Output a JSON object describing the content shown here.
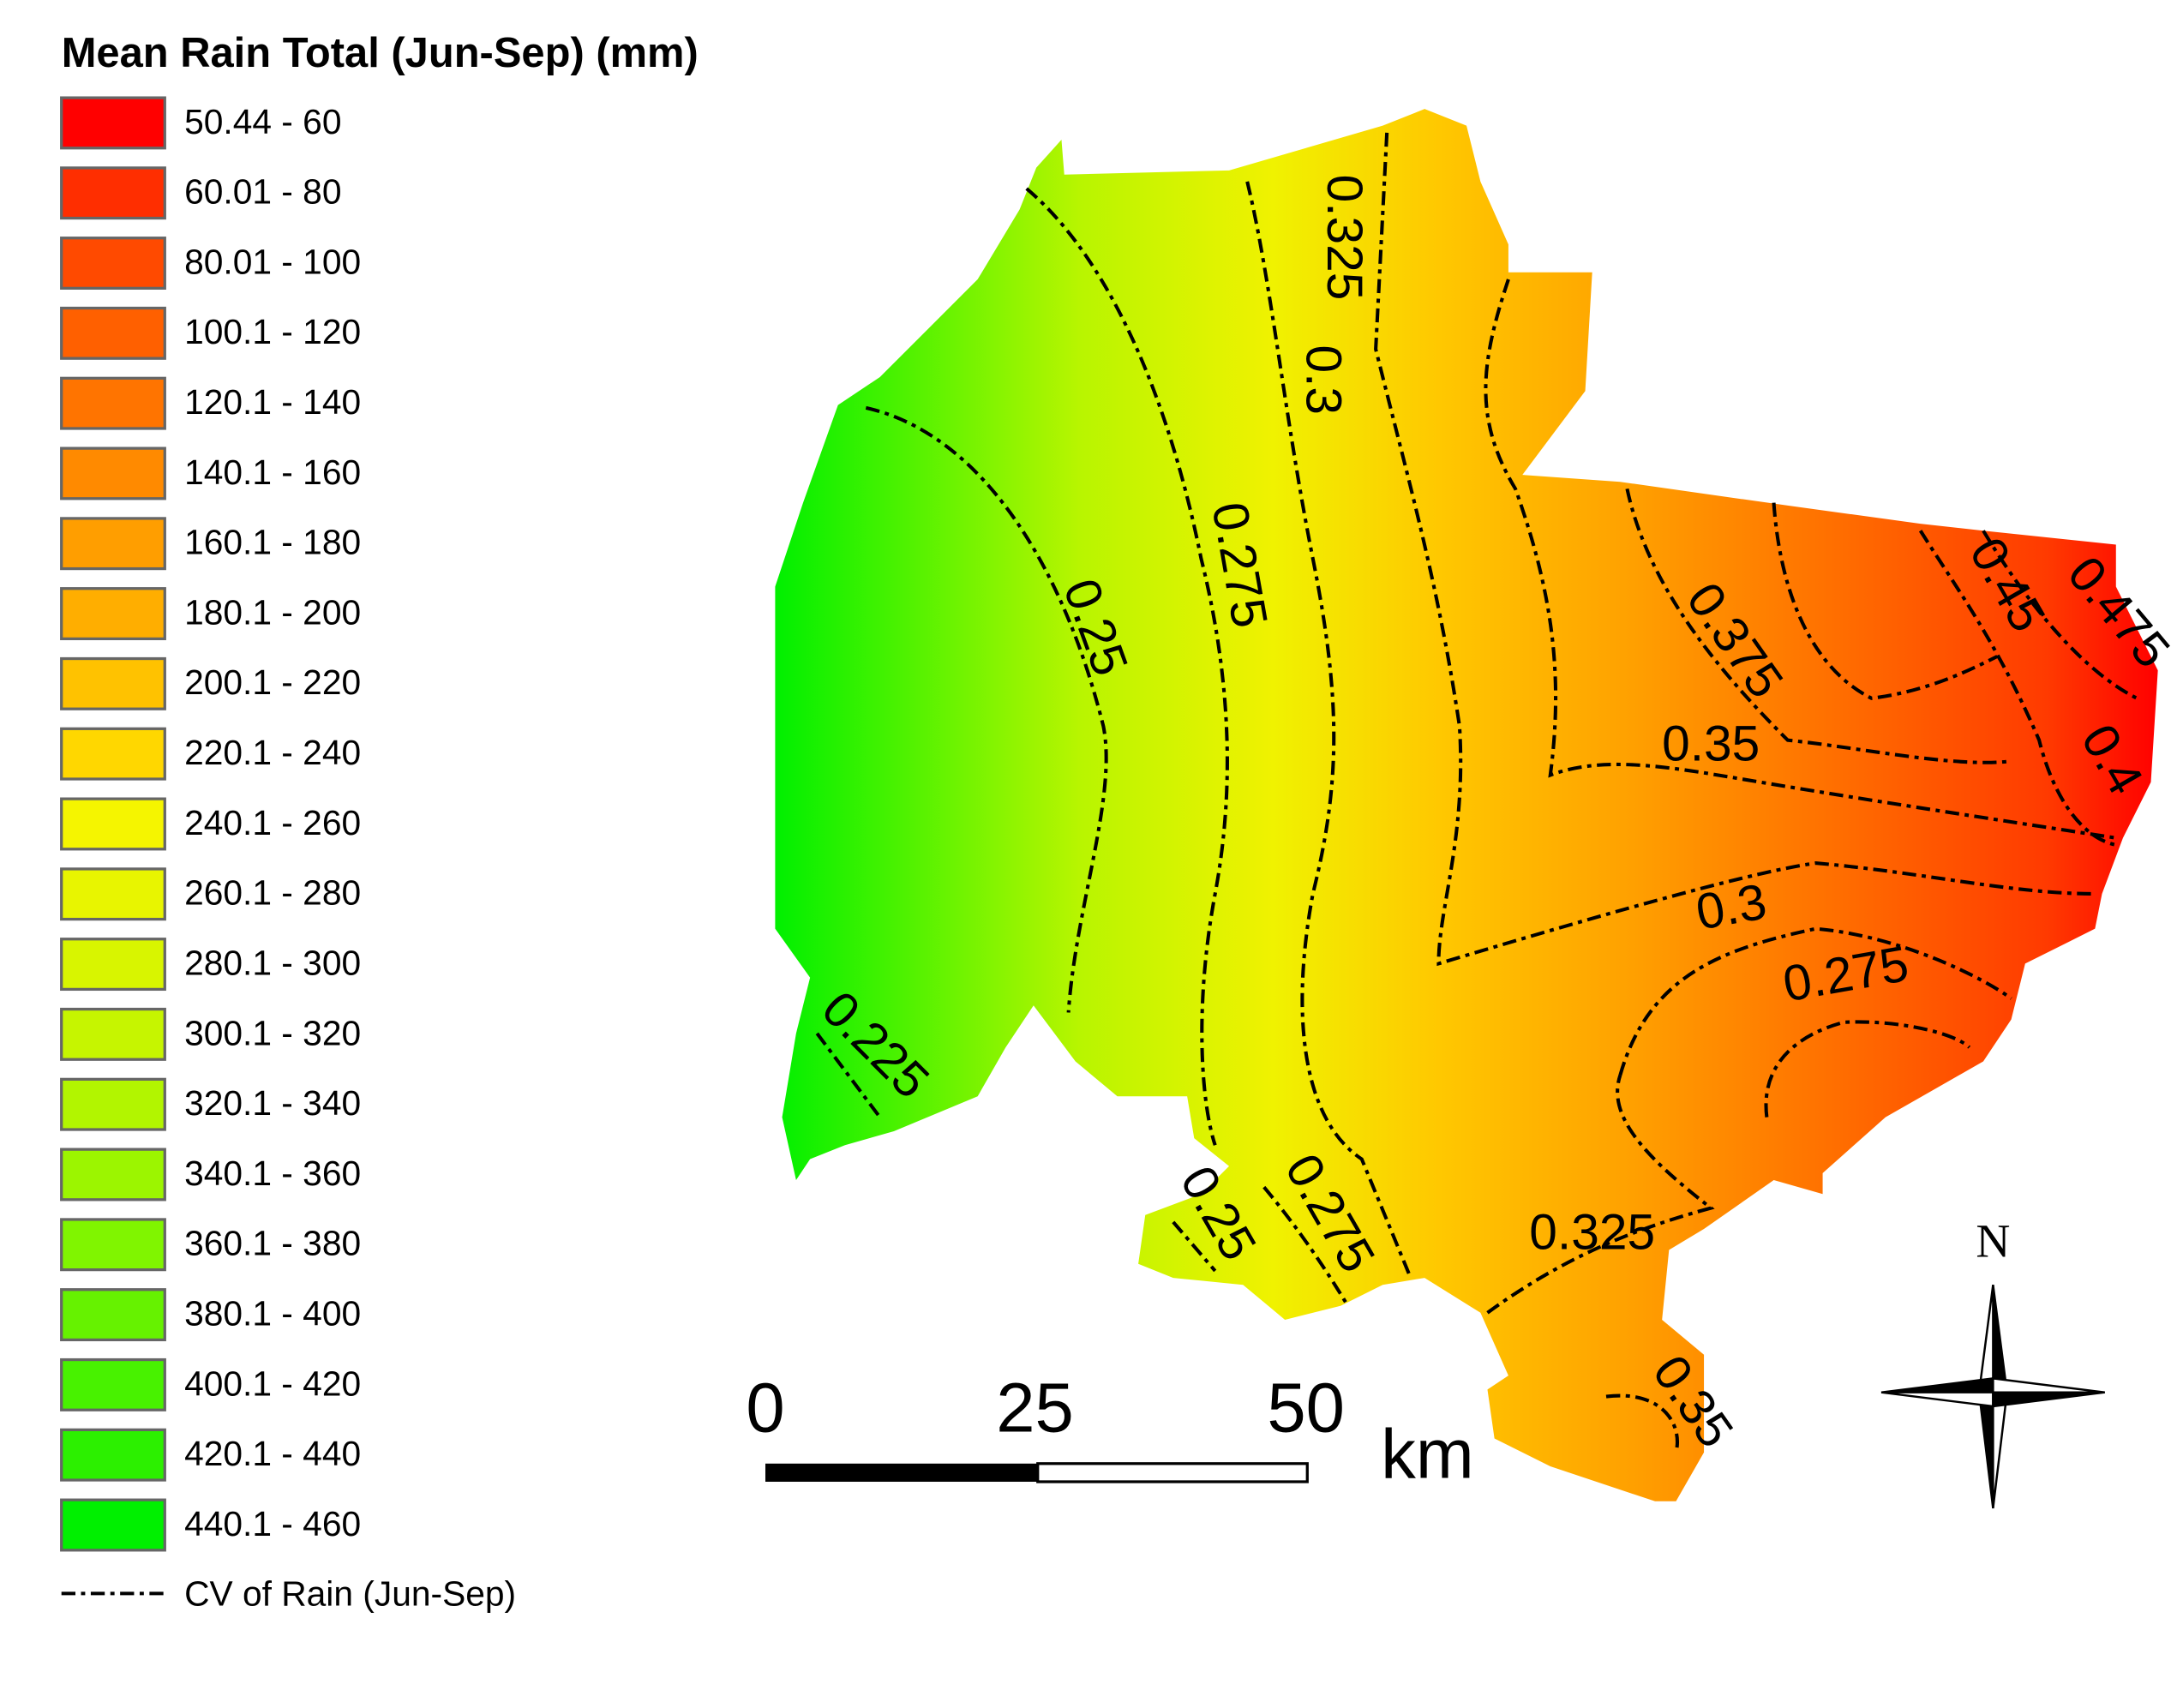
{
  "legend": {
    "title": "Mean Rain Total (Jun-Sep) (mm)",
    "items": [
      {
        "label": "50.44 - 60",
        "color": "#ff0000"
      },
      {
        "label": "60.01 - 80",
        "color": "#ff2e00"
      },
      {
        "label": "80.01 - 100",
        "color": "#ff4a00"
      },
      {
        "label": "100.1 - 120",
        "color": "#ff6000"
      },
      {
        "label": "120.1 - 140",
        "color": "#ff7400"
      },
      {
        "label": "140.1 - 160",
        "color": "#ff8a00"
      },
      {
        "label": "160.1 - 180",
        "color": "#ff9e00"
      },
      {
        "label": "180.1 - 200",
        "color": "#ffae00"
      },
      {
        "label": "200.1 - 220",
        "color": "#ffc200"
      },
      {
        "label": "220.1 - 240",
        "color": "#ffd700"
      },
      {
        "label": "240.1 - 260",
        "color": "#f5f500"
      },
      {
        "label": "260.1 - 280",
        "color": "#e8f500"
      },
      {
        "label": "280.1 - 300",
        "color": "#d8f500"
      },
      {
        "label": "300.1 - 320",
        "color": "#c6f500"
      },
      {
        "label": "320.1 - 340",
        "color": "#b2f500"
      },
      {
        "label": "340.1 - 360",
        "color": "#9cf500"
      },
      {
        "label": "360.1 - 380",
        "color": "#80f500"
      },
      {
        "label": "380.1 - 400",
        "color": "#66f200"
      },
      {
        "label": "400.1 - 420",
        "color": "#48f200"
      },
      {
        "label": "420.1 - 440",
        "color": "#2cf000"
      },
      {
        "label": "440.1 - 460",
        "color": "#00f000"
      }
    ],
    "line_label": "CV of Rain (Jun-Sep)"
  },
  "contour_labels": [
    "0.225",
    "0.25",
    "0.275",
    "0.3",
    "0.325",
    "0.25",
    "0.275",
    "0.3",
    "0.275",
    "0.325",
    "0.35",
    "0.375",
    "0.35",
    "0.45",
    "0.475",
    "0.4"
  ],
  "scale_bar": {
    "labels": [
      "0",
      "25",
      "50"
    ],
    "unit": "km"
  },
  "north": "N"
}
